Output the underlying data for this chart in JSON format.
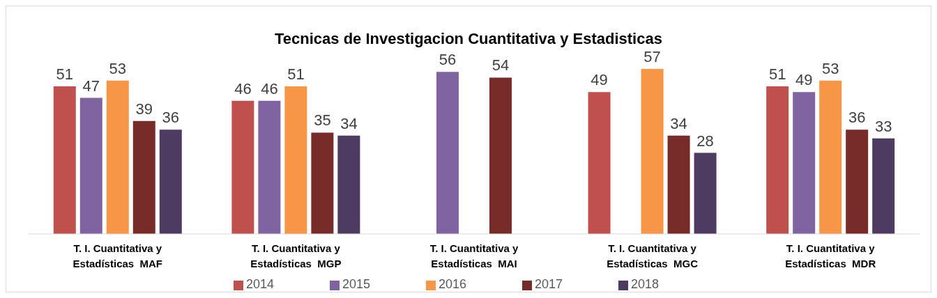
{
  "chart_data": {
    "type": "bar",
    "title": "Tecnicas de Investigacion Cuantitativa y Estadisticas",
    "categories": [
      "T. I. Cuantitativa y\nEstadísticas  MAF",
      "T. I. Cuantitativa y\nEstadísticas  MGP",
      "T. I. Cuantitativa y\nEstadísticas  MAI",
      "T. I. Cuantitativa y\nEstadísticas  MGC",
      "T. I. Cuantitativa y\nEstadísticas  MDR"
    ],
    "series": [
      {
        "name": "2014",
        "color": "#c0504d",
        "values": [
          51,
          46,
          null,
          49,
          51
        ]
      },
      {
        "name": "2015",
        "color": "#8064a2",
        "values": [
          47,
          46,
          56,
          null,
          49
        ]
      },
      {
        "name": "2016",
        "color": "#f79646",
        "values": [
          53,
          51,
          null,
          57,
          53
        ]
      },
      {
        "name": "2017",
        "color": "#772c2a",
        "values": [
          39,
          35,
          54,
          34,
          36
        ]
      },
      {
        "name": "2018",
        "color": "#4d3b62",
        "values": [
          36,
          34,
          null,
          28,
          33
        ]
      }
    ],
    "data_labels": true,
    "legend": "bottom",
    "grid": false
  }
}
